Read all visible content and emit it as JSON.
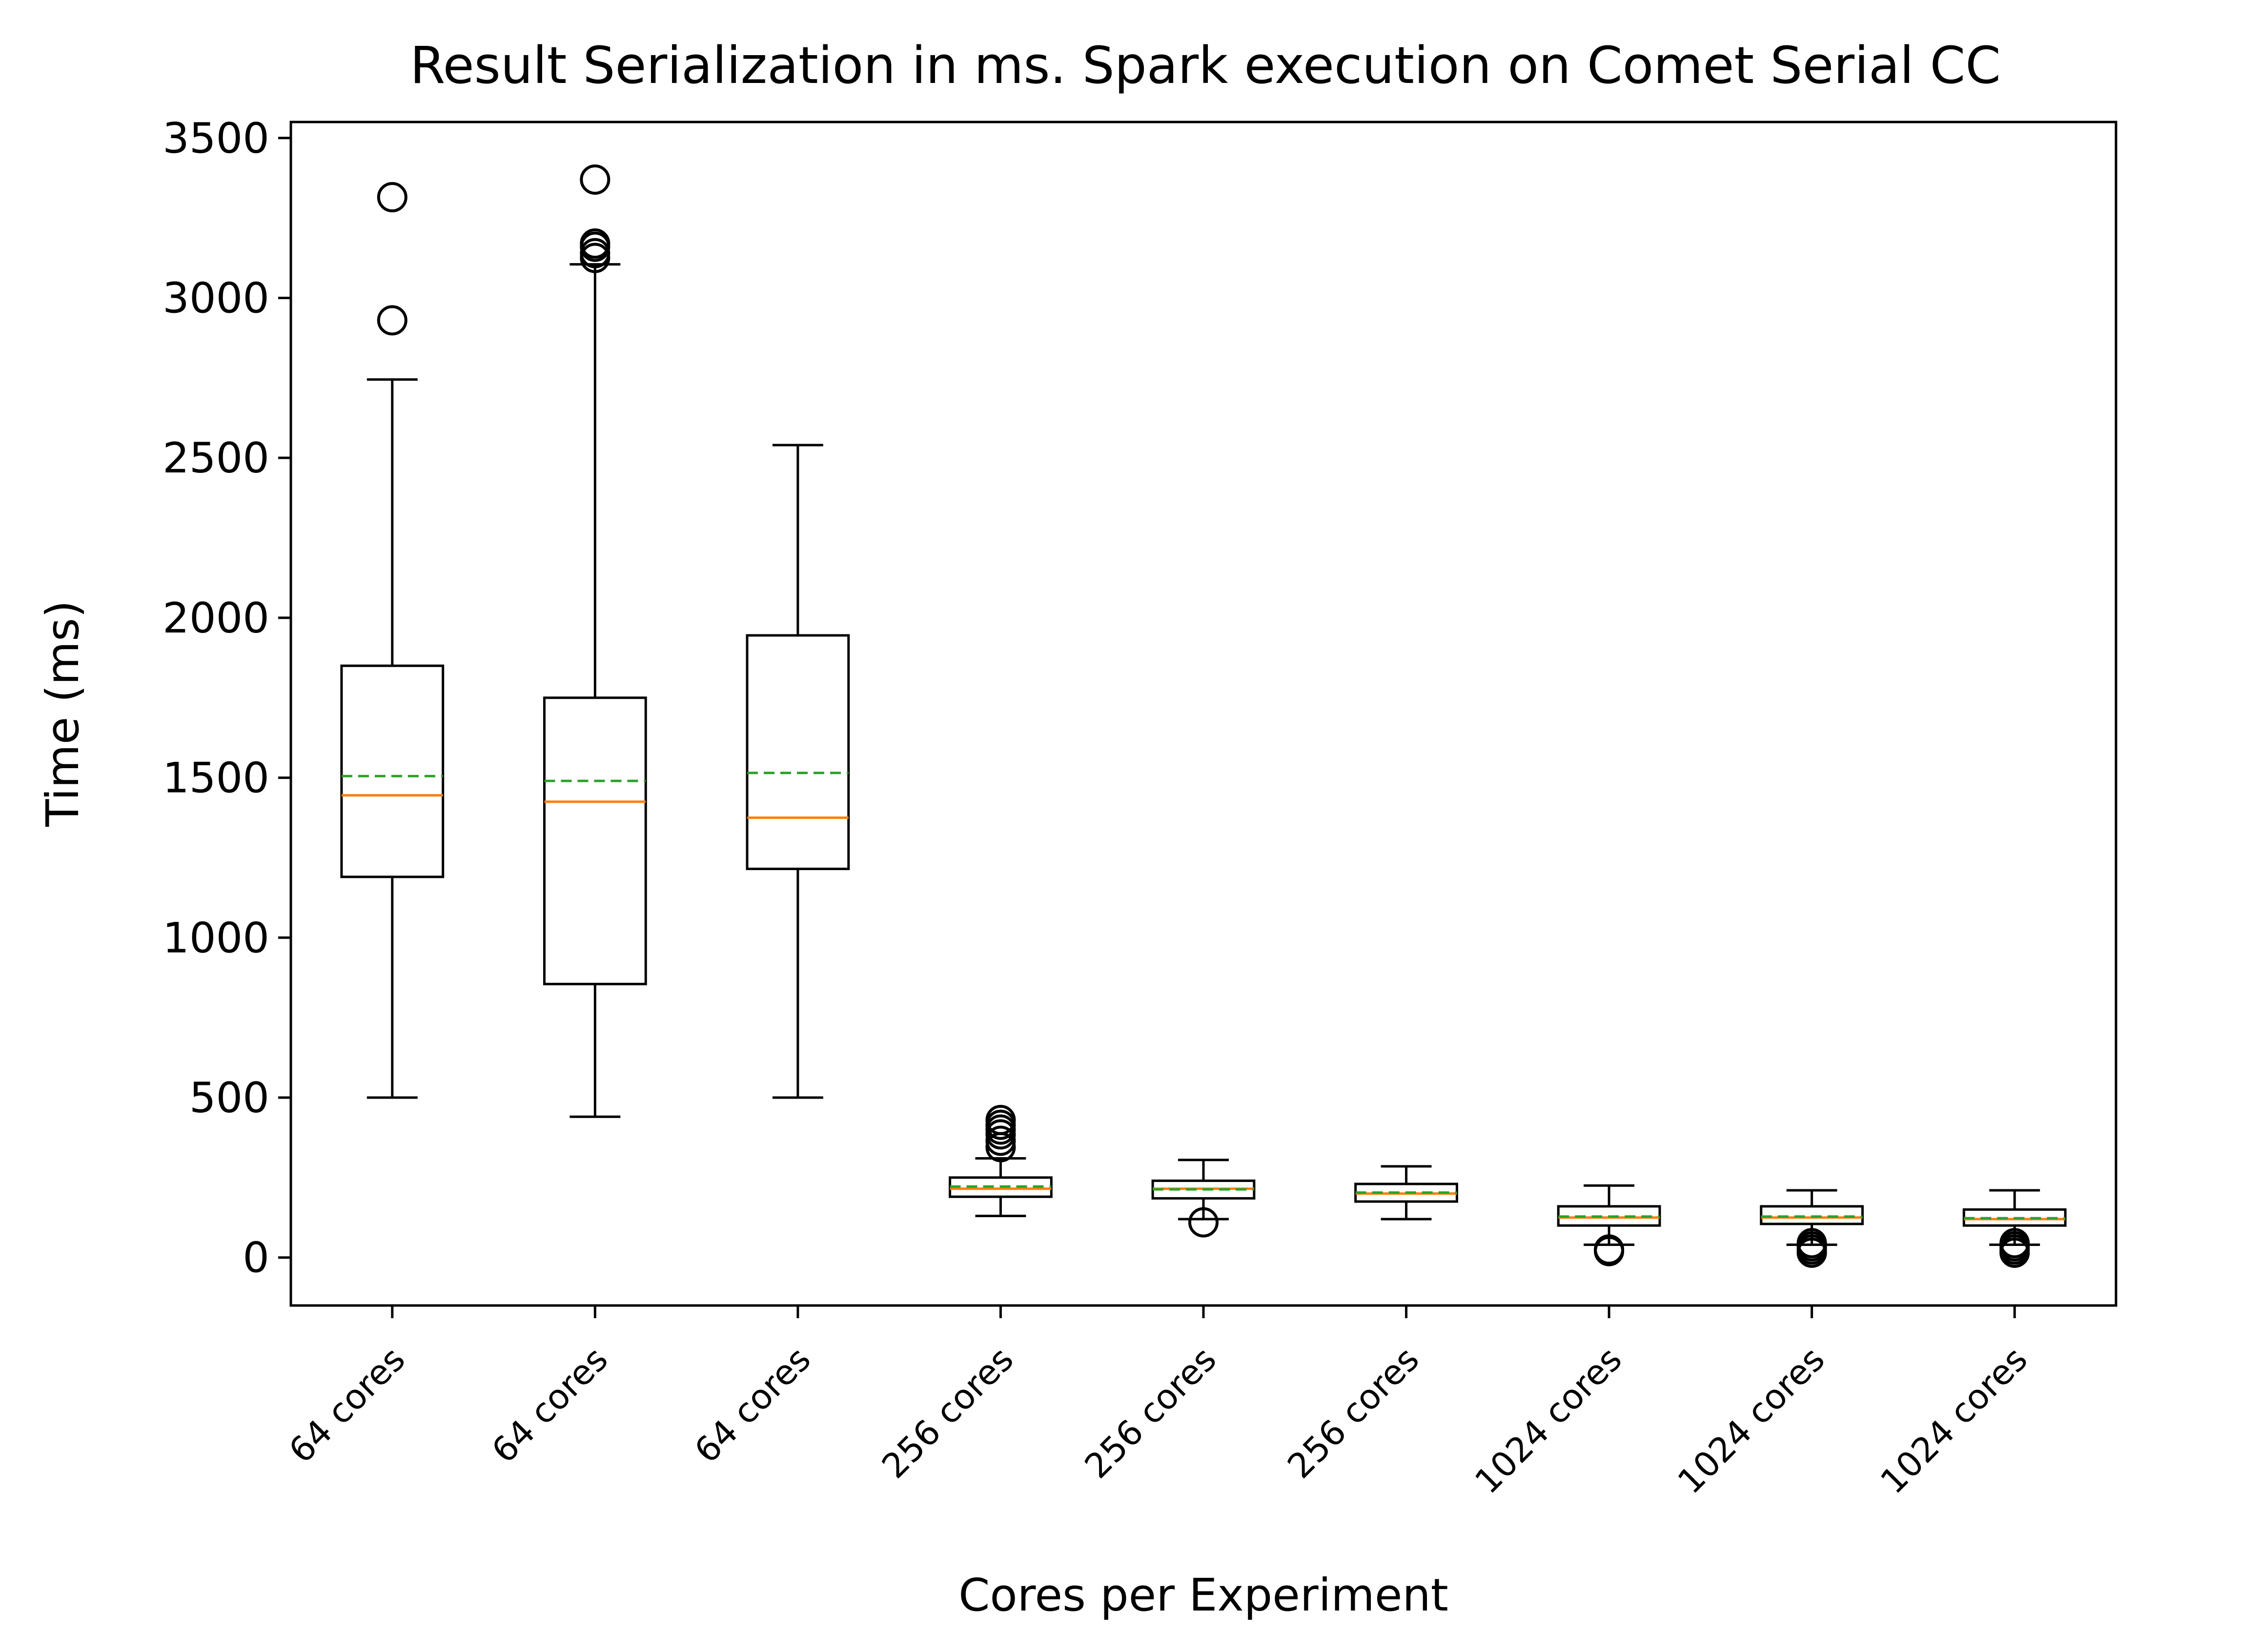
{
  "chart_data": {
    "type": "box",
    "title": "Result Serialization in ms. Spark execution on Comet Serial CC",
    "xlabel": "Cores per Experiment",
    "ylabel": "Time (ms)",
    "ylim": [
      -150,
      3550
    ],
    "yticks": [
      0,
      500,
      1000,
      1500,
      2000,
      2500,
      3000,
      3500
    ],
    "grid": false,
    "legend": "none",
    "colors": {
      "box": "#000000",
      "median": "#ff7f0e",
      "mean": "#2ca02c",
      "flier": "#000000"
    },
    "categories": [
      "64 cores",
      "64 cores",
      "64 cores",
      "256 cores",
      "256 cores",
      "256 cores",
      "1024 cores",
      "1024 cores",
      "1024 cores"
    ],
    "boxes": [
      {
        "label": "64 cores",
        "whislo": 500,
        "q1": 1190,
        "median": 1445,
        "mean": 1505,
        "q3": 1850,
        "whishi": 2745,
        "fliers": [
          2930,
          3315
        ]
      },
      {
        "label": "64 cores",
        "whislo": 440,
        "q1": 855,
        "median": 1425,
        "mean": 1490,
        "q3": 1750,
        "whishi": 3105,
        "fliers": [
          3125,
          3140,
          3160,
          3170,
          3370
        ]
      },
      {
        "label": "64 cores",
        "whislo": 500,
        "q1": 1215,
        "median": 1375,
        "mean": 1515,
        "q3": 1945,
        "whishi": 2540,
        "fliers": []
      },
      {
        "label": "256 cores",
        "whislo": 130,
        "q1": 190,
        "median": 215,
        "mean": 222,
        "q3": 250,
        "whishi": 310,
        "fliers": [
          345,
          365,
          385,
          400,
          415,
          430
        ]
      },
      {
        "label": "256 cores",
        "whislo": 120,
        "q1": 185,
        "median": 215,
        "mean": 213,
        "q3": 240,
        "whishi": 305,
        "fliers": [
          110
        ]
      },
      {
        "label": "256 cores",
        "whislo": 120,
        "q1": 175,
        "median": 200,
        "mean": 203,
        "q3": 230,
        "whishi": 285,
        "fliers": []
      },
      {
        "label": "1024 cores",
        "whislo": 40,
        "q1": 100,
        "median": 125,
        "mean": 128,
        "q3": 160,
        "whishi": 225,
        "fliers": [
          20,
          25
        ]
      },
      {
        "label": "1024 cores",
        "whislo": 40,
        "q1": 105,
        "median": 125,
        "mean": 128,
        "q3": 160,
        "whishi": 210,
        "fliers": [
          15,
          25,
          35,
          45
        ]
      },
      {
        "label": "1024 cores",
        "whislo": 40,
        "q1": 100,
        "median": 120,
        "mean": 123,
        "q3": 150,
        "whishi": 210,
        "fliers": [
          15,
          25,
          35,
          45
        ]
      }
    ]
  }
}
